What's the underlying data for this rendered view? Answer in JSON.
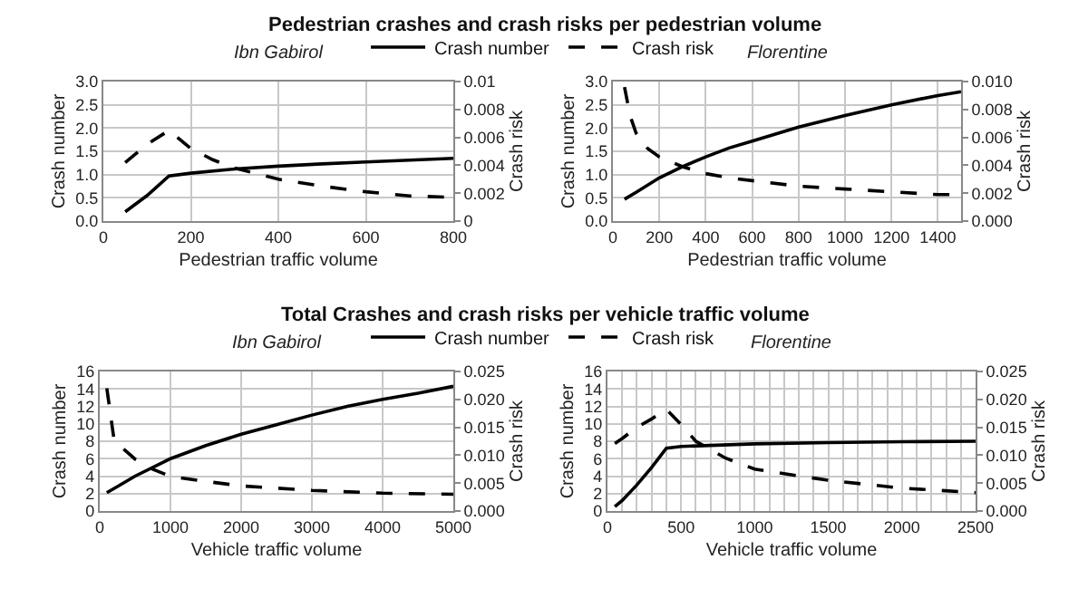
{
  "chart_data": [
    {
      "type": "line",
      "title": "Pedestrian crashes and crash risks per pedestrian volume",
      "subtitle": "Ibn Gabirol",
      "xlabel": "Pedestrian traffic volume",
      "ylabel": "Crash number",
      "y2label": "Crash risk",
      "xlim": [
        0,
        800
      ],
      "xticks": [
        0,
        200,
        400,
        600,
        800
      ],
      "ylim": [
        0,
        3
      ],
      "yticks": [
        {
          "value": 0,
          "label": "0.0"
        },
        {
          "value": 0.5,
          "label": "0.5"
        },
        {
          "value": 1,
          "label": "1.0"
        },
        {
          "value": 1.5,
          "label": "1.5"
        },
        {
          "value": 2,
          "label": "2.0"
        },
        {
          "value": 2.5,
          "label": "2.5"
        },
        {
          "value": 3,
          "label": "3.0"
        }
      ],
      "y2lim": [
        0,
        0.01
      ],
      "y2ticks": [
        0,
        0.002,
        0.004,
        0.006,
        0.008,
        0.01
      ],
      "grid": true,
      "legend": "top",
      "series": [
        {
          "name": "Crash number",
          "color": "#000000",
          "line_style": "solid",
          "x": [
            50,
            100,
            150,
            200,
            300,
            400,
            500,
            600,
            700,
            800
          ],
          "values": [
            0.2,
            0.55,
            0.97,
            1.03,
            1.12,
            1.18,
            1.23,
            1.27,
            1.31,
            1.35
          ]
        },
        {
          "name": "Crash risk",
          "color": "#000000",
          "line_style": "dashed",
          "axis": "y2",
          "x": [
            50,
            100,
            150,
            200,
            250,
            300,
            400,
            500,
            600,
            700,
            800
          ],
          "values": [
            0.0042,
            0.0055,
            0.0065,
            0.0052,
            0.0044,
            0.0038,
            0.003,
            0.0025,
            0.0021,
            0.0018,
            0.0017
          ]
        }
      ]
    },
    {
      "type": "line",
      "subtitle": "Florentine",
      "xlabel": "Pedestrian traffic volume",
      "ylabel": "Crash number",
      "y2label": "Crash risk",
      "xlim": [
        0,
        1500
      ],
      "xticks": [
        0,
        200,
        400,
        600,
        800,
        1000,
        1200,
        1400
      ],
      "ylim": [
        0,
        3
      ],
      "yticks": [
        {
          "value": 0,
          "label": "0.0"
        },
        {
          "value": 0.5,
          "label": "0.5"
        },
        {
          "value": 1,
          "label": "1.0"
        },
        {
          "value": 1.5,
          "label": "1.5"
        },
        {
          "value": 2,
          "label": "2.0"
        },
        {
          "value": 2.5,
          "label": "2.5"
        },
        {
          "value": 3,
          "label": "3.0"
        }
      ],
      "y2lim": [
        0,
        0.01
      ],
      "y2ticks": [
        {
          "value": 0,
          "label": "0.000"
        },
        {
          "value": 0.002,
          "label": "0.002"
        },
        {
          "value": 0.004,
          "label": "0.004"
        },
        {
          "value": 0.006,
          "label": "0.006"
        },
        {
          "value": 0.008,
          "label": "0.008"
        },
        {
          "value": 0.01,
          "label": "0.010"
        }
      ],
      "grid": true,
      "series": [
        {
          "color": "#000000",
          "line_style": "solid",
          "x": [
            50,
            100,
            200,
            300,
            400,
            500,
            600,
            800,
            1000,
            1200,
            1400,
            1500
          ],
          "values": [
            0.47,
            0.62,
            0.93,
            1.17,
            1.38,
            1.57,
            1.72,
            2.02,
            2.27,
            2.5,
            2.7,
            2.78
          ]
        },
        {
          "color": "#000000",
          "line_style": "dashed",
          "axis": "y2",
          "x": [
            50,
            75,
            100,
            150,
            200,
            300,
            400,
            500,
            600,
            800,
            1000,
            1200,
            1400,
            1500
          ],
          "values": [
            0.0096,
            0.0075,
            0.0063,
            0.0052,
            0.0046,
            0.0039,
            0.0034,
            0.0031,
            0.0029,
            0.0025,
            0.0023,
            0.0021,
            0.0019,
            0.0019
          ]
        }
      ]
    },
    {
      "type": "line",
      "title": "Total Crashes and crash risks per vehicle traffic volume",
      "subtitle": "Ibn Gabirol",
      "xlabel": "Vehicle traffic volume",
      "ylabel": "Crash number",
      "y2label": "Crash risk",
      "xlim": [
        0,
        5000
      ],
      "xticks": [
        0,
        1000,
        2000,
        3000,
        4000,
        5000
      ],
      "ylim": [
        0,
        16
      ],
      "yticks": [
        0,
        2,
        4,
        6,
        8,
        10,
        12,
        14,
        16
      ],
      "y2lim": [
        0,
        0.025
      ],
      "y2ticks": [
        {
          "value": 0,
          "label": "0.000"
        },
        {
          "value": 0.005,
          "label": "0.005"
        },
        {
          "value": 0.01,
          "label": "0.010"
        },
        {
          "value": 0.015,
          "label": "0.015"
        },
        {
          "value": 0.02,
          "label": "0.020"
        },
        {
          "value": 0.025,
          "label": "0.025"
        }
      ],
      "grid": true,
      "legend": "top",
      "series": [
        {
          "name": "Crash number",
          "color": "#000000",
          "line_style": "solid",
          "x": [
            100,
            250,
            500,
            1000,
            1500,
            2000,
            2500,
            3000,
            3500,
            4000,
            4500,
            5000
          ],
          "values": [
            2.1,
            2.8,
            4,
            6,
            7.5,
            8.8,
            9.9,
            11,
            12,
            12.8,
            13.5,
            14.3
          ]
        },
        {
          "name": "Crash risk",
          "color": "#000000",
          "line_style": "dashed",
          "axis": "y2",
          "x": [
            100,
            200,
            300,
            500,
            750,
            1000,
            1500,
            2000,
            3000,
            4000,
            5000
          ],
          "values": [
            0.022,
            0.013,
            0.0115,
            0.0093,
            0.0075,
            0.0062,
            0.0053,
            0.0045,
            0.0037,
            0.0032,
            0.003
          ]
        }
      ]
    },
    {
      "type": "line",
      "subtitle": "Florentine",
      "xlabel": "Vehicle traffic volume",
      "ylabel": "Crash number",
      "y2label": "Crash risk",
      "xlim": [
        0,
        2500
      ],
      "xticks": [
        0,
        {
          "value": 100,
          "label": null
        },
        {
          "value": 200,
          "label": null
        },
        {
          "value": 300,
          "label": null
        },
        {
          "value": 400,
          "label": null
        },
        500,
        {
          "value": 600,
          "label": null
        },
        {
          "value": 700,
          "label": null
        },
        {
          "value": 800,
          "label": null
        },
        {
          "value": 900,
          "label": null
        },
        1000,
        {
          "value": 1100,
          "label": null
        },
        {
          "value": 1200,
          "label": null
        },
        {
          "value": 1300,
          "label": null
        },
        {
          "value": 1400,
          "label": null
        },
        1500,
        {
          "value": 1600,
          "label": null
        },
        {
          "value": 1700,
          "label": null
        },
        {
          "value": 1800,
          "label": null
        },
        {
          "value": 1900,
          "label": null
        },
        2000,
        {
          "value": 2100,
          "label": null
        },
        {
          "value": 2200,
          "label": null
        },
        {
          "value": 2300,
          "label": null
        },
        {
          "value": 2400,
          "label": null
        },
        2500
      ],
      "ylim": [
        0,
        16
      ],
      "yticks": [
        0,
        2,
        4,
        6,
        8,
        10,
        12,
        14,
        16
      ],
      "y2lim": [
        0,
        0.025
      ],
      "y2ticks": [
        {
          "value": 0,
          "label": "0.000"
        },
        {
          "value": 0.005,
          "label": "0.005"
        },
        {
          "value": 0.01,
          "label": "0.010"
        },
        {
          "value": 0.015,
          "label": "0.015"
        },
        {
          "value": 0.02,
          "label": "0.020"
        },
        {
          "value": 0.025,
          "label": "0.025"
        }
      ],
      "grid": true,
      "series": [
        {
          "color": "#000000",
          "line_style": "solid",
          "x": [
            50,
            100,
            200,
            300,
            400,
            500,
            1000,
            1500,
            2000,
            2500
          ],
          "values": [
            0.5,
            1.2,
            3,
            5,
            7.2,
            7.4,
            7.7,
            7.85,
            7.95,
            8.0
          ]
        },
        {
          "color": "#000000",
          "line_style": "dashed",
          "axis": "y2",
          "x": [
            50,
            100,
            200,
            300,
            400,
            500,
            600,
            800,
            1000,
            1500,
            2000,
            2500
          ],
          "values": [
            0.0121,
            0.013,
            0.015,
            0.0165,
            0.0182,
            0.0155,
            0.0125,
            0.0095,
            0.0075,
            0.0055,
            0.0041,
            0.0033
          ]
        }
      ]
    }
  ]
}
